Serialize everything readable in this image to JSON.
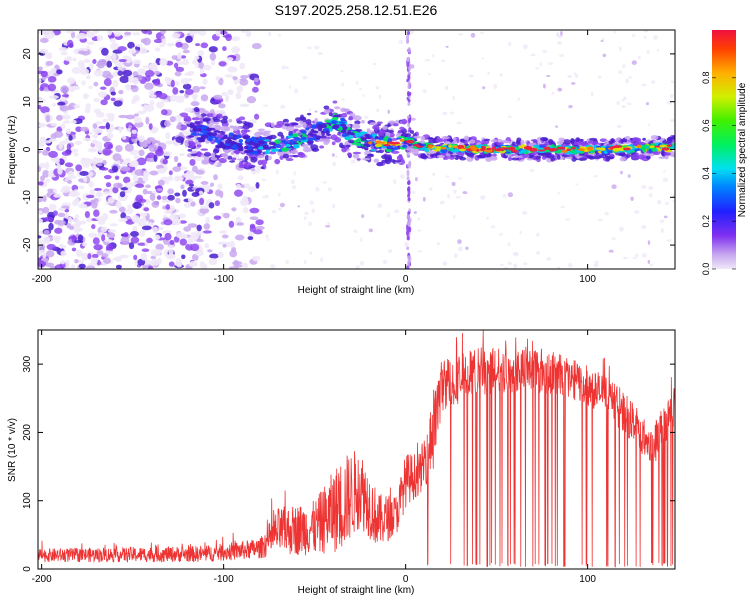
{
  "title": "S197.2025.258.12.51.E26",
  "chart_data": [
    {
      "type": "heatmap",
      "xlabel": "Height of straight line (km)",
      "ylabel": "Frequency (Hz)",
      "xlim": [
        -202,
        148
      ],
      "ylim": [
        -25,
        25
      ],
      "xticks": [
        -200,
        -100,
        0,
        100
      ],
      "yticks": [
        -20,
        -10,
        0,
        10,
        20
      ],
      "colorbar": {
        "label": "Normalized spectral amplitude",
        "range": [
          0,
          1
        ],
        "ticks": [
          0.0,
          0.2,
          0.4,
          0.6,
          0.8
        ],
        "tick_labels": [
          "0.0",
          "0.2",
          "0.4",
          "0.6",
          "0.8"
        ]
      },
      "ridge": [
        {
          "x": -115,
          "y": 3.5
        },
        {
          "x": -100,
          "y": 2
        },
        {
          "x": -80,
          "y": 0.5
        },
        {
          "x": -60,
          "y": 2
        },
        {
          "x": -45,
          "y": 4
        },
        {
          "x": -38,
          "y": 6
        },
        {
          "x": -30,
          "y": 3
        },
        {
          "x": -20,
          "y": 1.5
        },
        {
          "x": -10,
          "y": 1
        },
        {
          "x": 0,
          "y": 2
        },
        {
          "x": 10,
          "y": 0.5
        },
        {
          "x": 50,
          "y": 0
        },
        {
          "x": 100,
          "y": 0
        },
        {
          "x": 148,
          "y": 0.5
        }
      ],
      "colors": [
        "#f0e8f8",
        "#c9a8f0",
        "#8a3ff0",
        "#4a1fd0",
        "#1e4fff",
        "#00c8f0",
        "#00e060",
        "#e0e000",
        "#ff8000",
        "#f02040"
      ]
    },
    {
      "type": "line",
      "xlabel": "Height of straight line (km)",
      "ylabel": "SNR (10 * v/v)",
      "xlim": [
        -202,
        148
      ],
      "ylim": [
        0,
        350
      ],
      "xticks": [
        -200,
        -100,
        0,
        100
      ],
      "yticks": [
        0,
        100,
        200,
        300
      ],
      "color": "#ee3333",
      "envelope": [
        {
          "x": -200,
          "mean": 20,
          "amp": 10
        },
        {
          "x": -110,
          "mean": 22,
          "amp": 12
        },
        {
          "x": -80,
          "mean": 30,
          "amp": 15
        },
        {
          "x": -70,
          "mean": 55,
          "amp": 35
        },
        {
          "x": -50,
          "mean": 60,
          "amp": 40
        },
        {
          "x": -35,
          "mean": 95,
          "amp": 70
        },
        {
          "x": -25,
          "mean": 120,
          "amp": 60
        },
        {
          "x": -15,
          "mean": 70,
          "amp": 40
        },
        {
          "x": -5,
          "mean": 80,
          "amp": 30
        },
        {
          "x": 0,
          "mean": 130,
          "amp": 40
        },
        {
          "x": 8,
          "mean": 140,
          "amp": 30
        },
        {
          "x": 15,
          "mean": 200,
          "amp": 60
        },
        {
          "x": 20,
          "mean": 270,
          "amp": 40
        },
        {
          "x": 40,
          "mean": 290,
          "amp": 35
        },
        {
          "x": 70,
          "mean": 295,
          "amp": 35
        },
        {
          "x": 90,
          "mean": 280,
          "amp": 30
        },
        {
          "x": 110,
          "mean": 255,
          "amp": 30
        },
        {
          "x": 125,
          "mean": 215,
          "amp": 30
        },
        {
          "x": 135,
          "mean": 175,
          "amp": 30
        },
        {
          "x": 148,
          "mean": 240,
          "amp": 30
        }
      ],
      "dropouts_range": [
        12,
        148
      ]
    }
  ]
}
